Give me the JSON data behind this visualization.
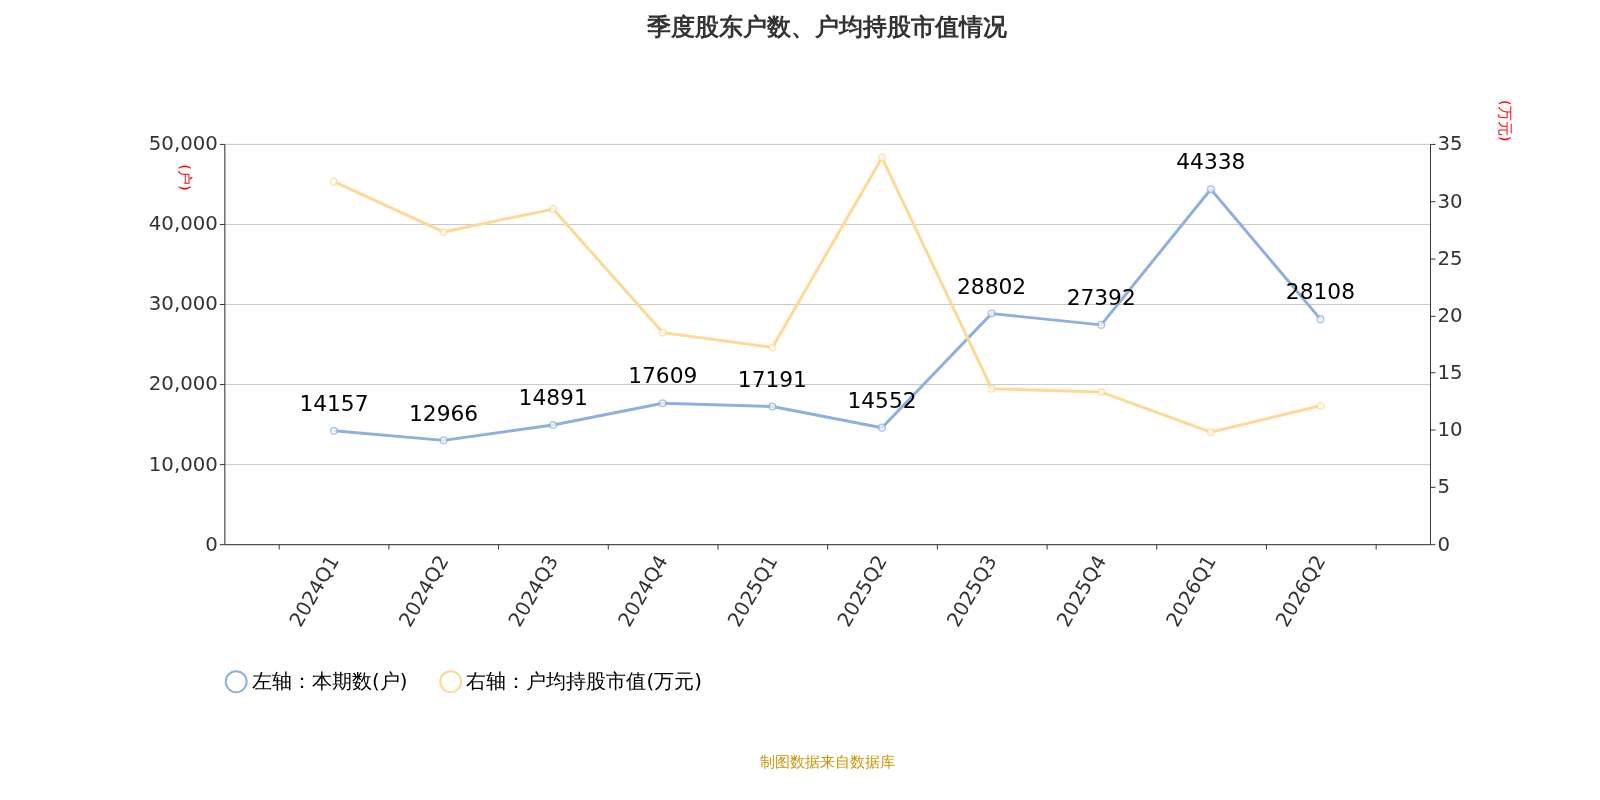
{
  "chart_data": {
    "type": "line",
    "title": "季度股东户数、户均持股市值情况",
    "ylabel": "(户)",
    "y2label": "(万元)",
    "categories": [
      "2024Q1",
      "2024Q2",
      "2024Q3",
      "2024Q4",
      "2025Q1",
      "2025Q2",
      "2025Q3",
      "2025Q4",
      "2026Q1",
      "2026Q2"
    ],
    "series": [
      {
        "name": "左轴：本期数(户)",
        "color": "#8eb0dc",
        "values": [
          14157,
          12966,
          14891,
          17609,
          17191,
          14552,
          28802,
          27392,
          44338,
          28108
        ],
        "value_labels": [
          "14157",
          "12966",
          "14891",
          "17609",
          "17191",
          "14552",
          "28802",
          "27392",
          "44338",
          "28108"
        ]
      },
      {
        "name": "右轴：户均持股市值(万元)",
        "color": "#fdd995",
        "axis": "y2",
        "values": [
          31.7,
          27.3,
          29.3,
          18.5,
          17.2,
          33.8,
          13.6,
          13.3,
          9.8,
          12.1
        ]
      }
    ],
    "ylim": [
      0,
      50000
    ],
    "yticks": [
      0,
      {
        "value": 10000,
        "label": "10,000"
      },
      {
        "value": 20000,
        "label": "20,000"
      },
      {
        "value": 30000,
        "label": "30,000"
      },
      {
        "value": 40000,
        "label": "40,000"
      },
      {
        "value": 50000,
        "label": "50,000"
      }
    ],
    "y2lim": [
      0,
      35
    ],
    "y2ticks": [
      0,
      5,
      10,
      15,
      20,
      25,
      30,
      35
    ],
    "grid": "y",
    "legend": "bottom",
    "marker": "circle",
    "line_style": "solid",
    "annotations": [
      "制图数据来自数据库"
    ]
  }
}
